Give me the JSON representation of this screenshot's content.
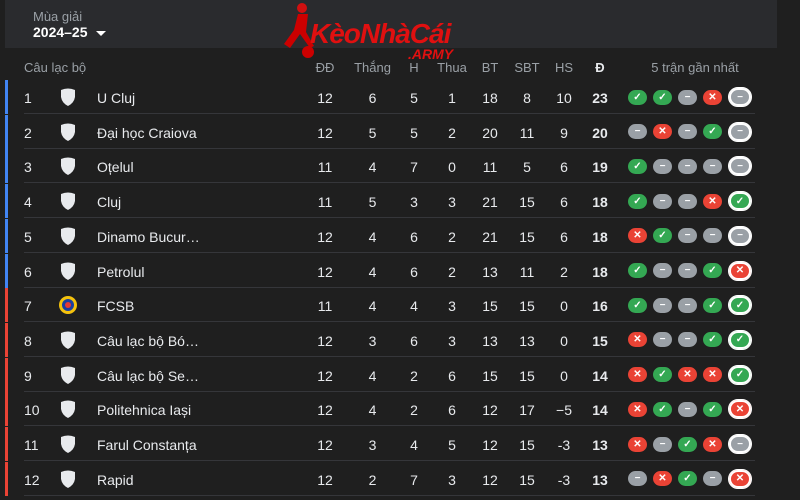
{
  "season": {
    "label": "Mùa giải",
    "value": "2024–25"
  },
  "logo": {
    "text": "KèoNhàCái",
    "suffix": ".ARMY"
  },
  "headers": {
    "club": "Câu lạc bộ",
    "played": "ĐĐ",
    "won": "Thắng",
    "drawn": "H",
    "lost": "Thua",
    "gf": "BT",
    "ga": "SBT",
    "gd": "HS",
    "pts": "Đ",
    "form": "5 trận gần nhất"
  },
  "colors": {
    "win": "#34a853",
    "loss": "#ea4335",
    "draw": "#9aa0a6",
    "zone_top": "#4285f4",
    "zone_bottom": "#ea4335"
  },
  "rows": [
    {
      "pos": "1",
      "club": "U Cluj",
      "p": "12",
      "w": "6",
      "d": "5",
      "l": "1",
      "gf": "18",
      "ga": "8",
      "gd": "10",
      "pts": "23",
      "form": [
        "W",
        "W",
        "D",
        "L",
        "D"
      ],
      "zone": "top"
    },
    {
      "pos": "2",
      "club": "Đại học Craiova",
      "p": "12",
      "w": "5",
      "d": "5",
      "l": "2",
      "gf": "20",
      "ga": "11",
      "gd": "9",
      "pts": "20",
      "form": [
        "D",
        "L",
        "D",
        "W",
        "D"
      ],
      "zone": "top"
    },
    {
      "pos": "3",
      "club": "Oțelul",
      "p": "11",
      "w": "4",
      "d": "7",
      "l": "0",
      "gf": "11",
      "ga": "5",
      "gd": "6",
      "pts": "19",
      "form": [
        "W",
        "D",
        "D",
        "D",
        "D"
      ],
      "zone": "top"
    },
    {
      "pos": "4",
      "club": "Cluj",
      "p": "11",
      "w": "5",
      "d": "3",
      "l": "3",
      "gf": "21",
      "ga": "15",
      "gd": "6",
      "pts": "18",
      "form": [
        "W",
        "D",
        "D",
        "L",
        "W"
      ],
      "zone": "top"
    },
    {
      "pos": "5",
      "club": "Dinamo Bucur…",
      "p": "12",
      "w": "4",
      "d": "6",
      "l": "2",
      "gf": "21",
      "ga": "15",
      "gd": "6",
      "pts": "18",
      "form": [
        "L",
        "W",
        "D",
        "D",
        "D"
      ],
      "zone": "top"
    },
    {
      "pos": "6",
      "club": "Petrolul",
      "p": "12",
      "w": "4",
      "d": "6",
      "l": "2",
      "gf": "13",
      "ga": "11",
      "gd": "2",
      "pts": "18",
      "form": [
        "W",
        "D",
        "D",
        "W",
        "L"
      ],
      "zone": "top"
    },
    {
      "pos": "7",
      "club": "FCSB",
      "p": "11",
      "w": "4",
      "d": "4",
      "l": "3",
      "gf": "15",
      "ga": "15",
      "gd": "0",
      "pts": "16",
      "form": [
        "W",
        "D",
        "D",
        "W",
        "W"
      ],
      "zone": "bottom"
    },
    {
      "pos": "8",
      "club": "Câu lạc bộ Bó…",
      "p": "12",
      "w": "3",
      "d": "6",
      "l": "3",
      "gf": "13",
      "ga": "13",
      "gd": "0",
      "pts": "15",
      "form": [
        "L",
        "D",
        "D",
        "W",
        "W"
      ],
      "zone": "bottom"
    },
    {
      "pos": "9",
      "club": "Câu lạc bộ Se…",
      "p": "12",
      "w": "4",
      "d": "2",
      "l": "6",
      "gf": "15",
      "ga": "15",
      "gd": "0",
      "pts": "14",
      "form": [
        "L",
        "W",
        "L",
        "L",
        "W"
      ],
      "zone": "bottom"
    },
    {
      "pos": "10",
      "club": "Politehnica Iași",
      "p": "12",
      "w": "4",
      "d": "2",
      "l": "6",
      "gf": "12",
      "ga": "17",
      "gd": "−5",
      "pts": "14",
      "form": [
        "L",
        "W",
        "D",
        "W",
        "L"
      ],
      "zone": "bottom"
    },
    {
      "pos": "11",
      "club": "Farul Constanța",
      "p": "12",
      "w": "3",
      "d": "4",
      "l": "5",
      "gf": "12",
      "ga": "15",
      "gd": "-3",
      "pts": "13",
      "form": [
        "L",
        "D",
        "W",
        "L",
        "D"
      ],
      "zone": "bottom"
    },
    {
      "pos": "12",
      "club": "Rapid",
      "p": "12",
      "w": "2",
      "d": "7",
      "l": "3",
      "gf": "12",
      "ga": "15",
      "gd": "-3",
      "pts": "13",
      "form": [
        "D",
        "L",
        "W",
        "D",
        "L"
      ],
      "zone": "bottom"
    }
  ]
}
